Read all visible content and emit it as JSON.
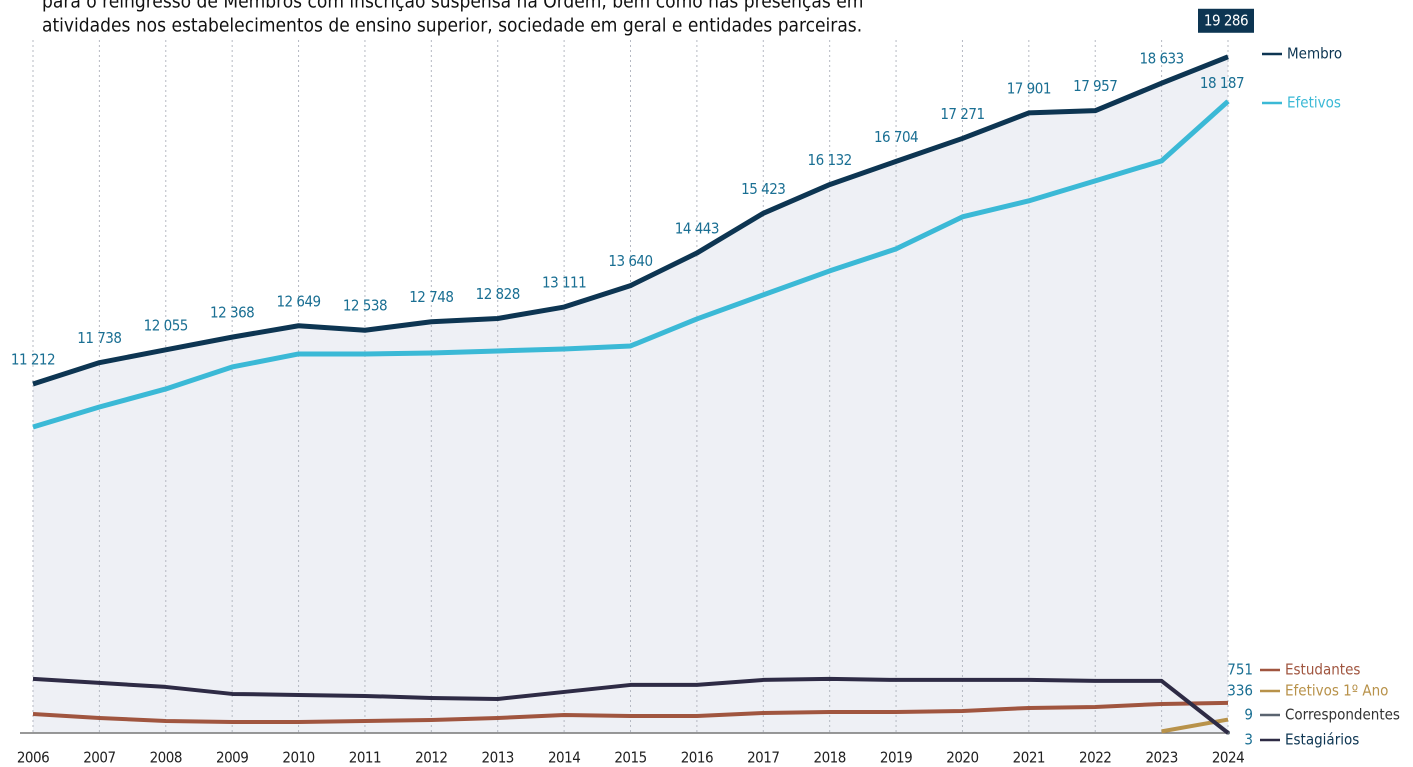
{
  "chart_data": {
    "type": "line",
    "subtitle": [
      "para o reingresso de Membros com inscrição suspensa na Ordem, bem como nas presenças em",
      "atividades nos estabelecimentos de ensino superior, sociedade em geral e entidades parceiras."
    ],
    "categories": [
      "2006",
      "2007",
      "2008",
      "2009",
      "2010",
      "2011",
      "2012",
      "2013",
      "2014",
      "2015",
      "2016",
      "2017",
      "2018",
      "2019",
      "2020",
      "2021",
      "2022",
      "2023",
      "2024"
    ],
    "ylim": [
      2600,
      19700
    ],
    "y2lim": [
      0,
      17300
    ],
    "grid": true,
    "series": [
      {
        "name": "Membro",
        "color": "#0d3552",
        "values": [
          11212,
          11738,
          12055,
          12368,
          12649,
          12538,
          12748,
          12828,
          13111,
          13640,
          14443,
          15423,
          16132,
          16704,
          17271,
          17901,
          17957,
          18633,
          19286
        ],
        "value_labels": [
          "11 212",
          "11 738",
          "12 055",
          "12 368",
          "12 649",
          "12 538",
          "12 748",
          "12 828",
          "13 111",
          "13 640",
          "14 443",
          "15 423",
          "16 132",
          "16 704",
          "17 271",
          "17 901",
          "17 957",
          "18 633",
          "19 286"
        ]
      },
      {
        "name": "Efetivos",
        "color": "#3bb9d6",
        "values": [
          10150,
          10644,
          11089,
          11632,
          11953,
          11953,
          11977,
          12027,
          12076,
          12150,
          12817,
          13410,
          14002,
          14545,
          15336,
          15731,
          16224,
          16718,
          18187
        ],
        "value_labels": [
          null,
          null,
          null,
          null,
          null,
          null,
          null,
          null,
          null,
          null,
          null,
          null,
          null,
          null,
          null,
          null,
          null,
          null,
          "18 187"
        ]
      },
      {
        "name": "Estudantes",
        "color": "#a0553f",
        "axis": "y2",
        "values": [
          475,
          375,
          300,
          275,
          275,
          300,
          325,
          375,
          450,
          425,
          425,
          500,
          525,
          525,
          550,
          625,
          650,
          725,
          751
        ]
      },
      {
        "name": "Efetivos 1º Ano",
        "color": "#b8924a",
        "axis": "y2",
        "values": [
          null,
          null,
          null,
          null,
          null,
          null,
          null,
          null,
          null,
          null,
          null,
          null,
          null,
          null,
          null,
          null,
          null,
          40,
          336
        ]
      },
      {
        "name": "Correspondentes",
        "color": "#5a6470",
        "axis": "y2",
        "values": [
          null,
          null,
          null,
          null,
          null,
          null,
          null,
          null,
          null,
          null,
          null,
          null,
          null,
          null,
          null,
          null,
          null,
          null,
          9
        ]
      },
      {
        "name": "Estagiários",
        "color": "#2e2b45",
        "axis": "y2",
        "values": [
          1350,
          1250,
          1150,
          975,
          950,
          925,
          875,
          850,
          1025,
          1200,
          1200,
          1325,
          1350,
          1325,
          1325,
          1325,
          1300,
          1300,
          3
        ]
      }
    ]
  }
}
